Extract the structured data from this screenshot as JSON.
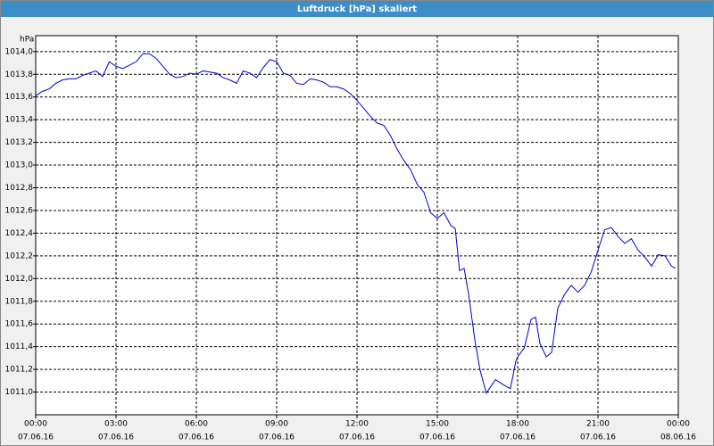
{
  "chart_data": {
    "type": "line",
    "title": "Luftdruck [hPa] skaliert",
    "ylabel": "hPa",
    "x": [
      0,
      0.25,
      0.5,
      0.75,
      1,
      1.25,
      1.5,
      1.75,
      2,
      2.25,
      2.5,
      2.75,
      3,
      3.25,
      3.5,
      3.75,
      4,
      4.25,
      4.5,
      4.75,
      5,
      5.25,
      5.5,
      5.75,
      6,
      6.25,
      6.5,
      6.75,
      7,
      7.25,
      7.5,
      7.75,
      8,
      8.25,
      8.5,
      8.75,
      9,
      9.25,
      9.5,
      9.75,
      10,
      10.25,
      10.5,
      10.75,
      11,
      11.25,
      11.5,
      11.75,
      12,
      12.25,
      12.5,
      12.75,
      13,
      13.25,
      13.5,
      13.75,
      14,
      14.25,
      14.5,
      14.75,
      15,
      15.25,
      15.5,
      15.67,
      15.83,
      16,
      16.17,
      16.4,
      16.6,
      16.83,
      17.17,
      17.5,
      17.73,
      17.93,
      18,
      18.25,
      18.5,
      18.67,
      18.83,
      19.07,
      19.27,
      19.5,
      19.75,
      20,
      20.25,
      20.5,
      20.75,
      21,
      21.25,
      21.5,
      21.75,
      22,
      22.25,
      22.5,
      22.75,
      23,
      23.25,
      23.5,
      23.75,
      23.9
    ],
    "series": [
      {
        "name": "Luftdruck",
        "color": "#0000cc",
        "values": [
          1013.61,
          1013.65,
          1013.67,
          1013.72,
          1013.75,
          1013.76,
          1013.76,
          1013.79,
          1013.81,
          1013.83,
          1013.78,
          1013.91,
          1013.87,
          1013.85,
          1013.88,
          1013.91,
          1013.98,
          1013.98,
          1013.94,
          1013.87,
          1013.8,
          1013.77,
          1013.78,
          1013.81,
          1013.8,
          1013.83,
          1013.82,
          1013.81,
          1013.77,
          1013.75,
          1013.72,
          1013.83,
          1013.81,
          1013.77,
          1013.86,
          1013.93,
          1013.91,
          1013.81,
          1013.79,
          1013.72,
          1013.71,
          1013.76,
          1013.75,
          1013.73,
          1013.69,
          1013.69,
          1013.67,
          1013.63,
          1013.57,
          1013.5,
          1013.43,
          1013.37,
          1013.35,
          1013.26,
          1013.14,
          1013.04,
          1012.96,
          1012.83,
          1012.76,
          1012.58,
          1012.53,
          1012.58,
          1012.47,
          1012.44,
          1012.07,
          1012.09,
          1011.86,
          1011.46,
          1011.19,
          1010.99,
          1011.11,
          1011.06,
          1011.03,
          1011.27,
          1011.31,
          1011.39,
          1011.64,
          1011.66,
          1011.43,
          1011.31,
          1011.35,
          1011.74,
          1011.86,
          1011.94,
          1011.88,
          1011.94,
          1012.06,
          1012.25,
          1012.43,
          1012.45,
          1012.37,
          1012.31,
          1012.35,
          1012.25,
          1012.19,
          1012.11,
          1012.21,
          1012.2,
          1012.11,
          1012.09
        ]
      }
    ],
    "xlim": [
      0,
      24
    ],
    "xticks": [
      {
        "value": 0,
        "label": "00:00",
        "date": "07.06.16"
      },
      {
        "value": 3,
        "label": "03:00",
        "date": "07.06.16"
      },
      {
        "value": 6,
        "label": "06:00",
        "date": "07.06.16"
      },
      {
        "value": 9,
        "label": "09:00",
        "date": "07.06.16"
      },
      {
        "value": 12,
        "label": "12:00",
        "date": "07.06.16"
      },
      {
        "value": 15,
        "label": "15:00",
        "date": "07.06.16"
      },
      {
        "value": 18,
        "label": "18:00",
        "date": "07.06.16"
      },
      {
        "value": 21,
        "label": "21:00",
        "date": "07.06.16"
      },
      {
        "value": 24,
        "label": "00:00",
        "date": "08.06.16"
      }
    ],
    "ylim": [
      1010.8,
      1014.14
    ],
    "yticks": [
      {
        "value": 1011.0,
        "label": "1011,0"
      },
      {
        "value": 1011.2,
        "label": "1011,2"
      },
      {
        "value": 1011.4,
        "label": "1011,4"
      },
      {
        "value": 1011.6,
        "label": "1011,6"
      },
      {
        "value": 1011.8,
        "label": "1011,8"
      },
      {
        "value": 1012.0,
        "label": "1012,0"
      },
      {
        "value": 1012.2,
        "label": "1012,2"
      },
      {
        "value": 1012.4,
        "label": "1012,4"
      },
      {
        "value": 1012.6,
        "label": "1012,6"
      },
      {
        "value": 1012.8,
        "label": "1012,8"
      },
      {
        "value": 1013.0,
        "label": "1013,0"
      },
      {
        "value": 1013.2,
        "label": "1013,2"
      },
      {
        "value": 1013.4,
        "label": "1013,4"
      },
      {
        "value": 1013.6,
        "label": "1013,6"
      },
      {
        "value": 1013.8,
        "label": "1013,8"
      },
      {
        "value": 1014.0,
        "label": "1014,0"
      }
    ],
    "grid": true
  }
}
